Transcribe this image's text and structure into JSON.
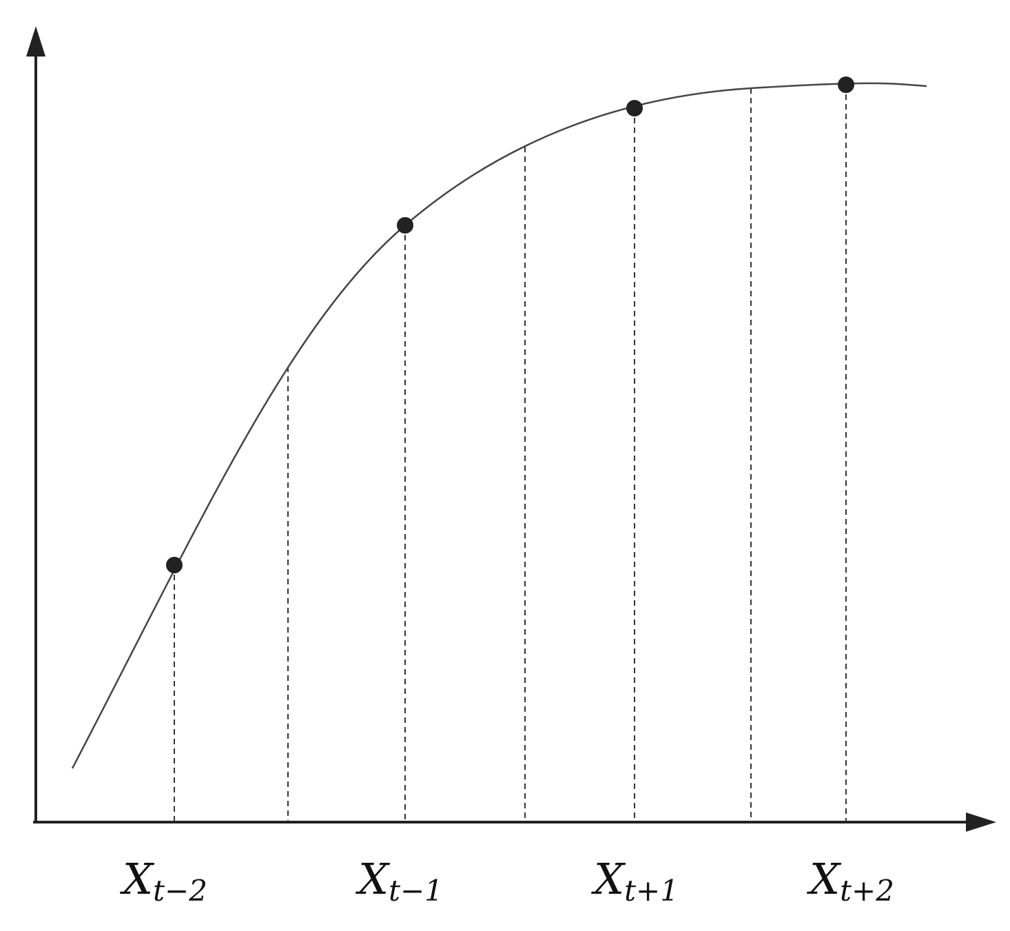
{
  "labels": [
    {
      "main": "X",
      "sub": "t−2"
    },
    {
      "main": "X",
      "sub": "t−1"
    },
    {
      "main": "X",
      "sub": "t+1"
    },
    {
      "main": "X",
      "sub": "t+2"
    }
  ]
}
